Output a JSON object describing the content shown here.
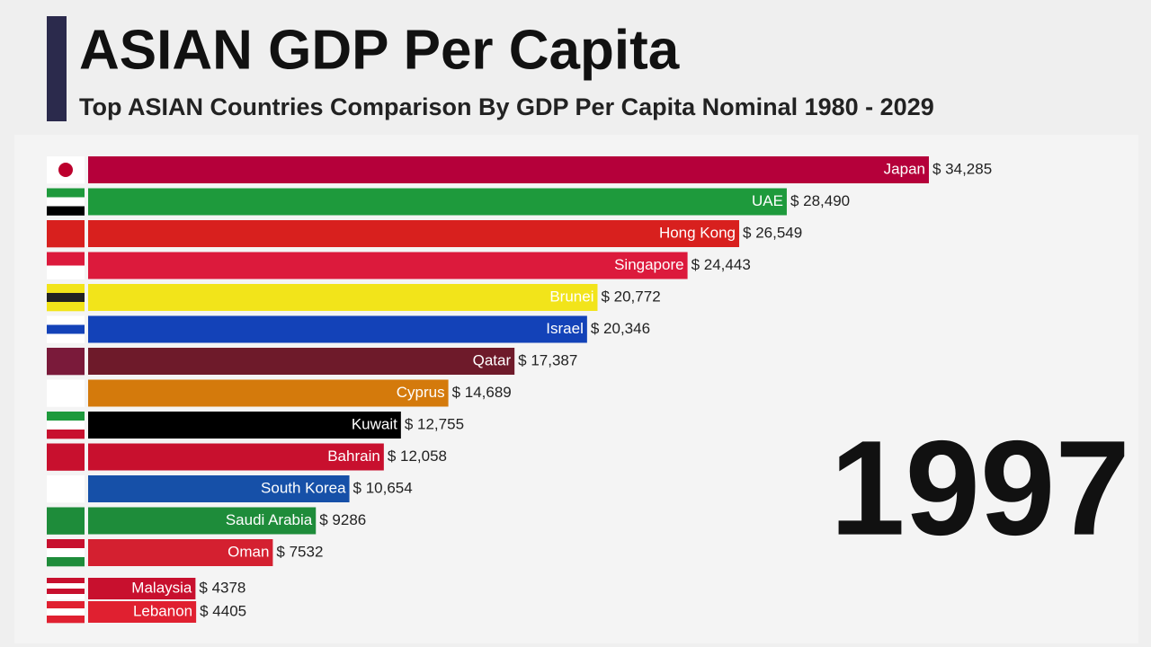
{
  "chart_data": {
    "type": "bar",
    "orientation": "horizontal",
    "title": "ASIAN GDP Per Capita",
    "subtitle": "Top ASIAN Countries Comparison By GDP Per Capita Nominal 1980 - 2029",
    "year": "1997",
    "categories": [
      "Japan",
      "UAE",
      "Hong Kong",
      "Singapore",
      "Brunei",
      "Israel",
      "Qatar",
      "Cyprus",
      "Kuwait",
      "Bahrain",
      "South Korea",
      "Saudi Arabia",
      "Oman",
      "Malaysia",
      "Lebanon"
    ],
    "values": [
      34285,
      28490,
      26549,
      24443,
      20772,
      20346,
      17387,
      14689,
      12755,
      12058,
      10654,
      9286,
      7532,
      4378,
      4405
    ],
    "value_labels": [
      "$ 34,285",
      "$ 28,490",
      "$ 26,549",
      "$ 24,443",
      "$ 20,772",
      "$ 20,346",
      "$ 17,387",
      "$ 14,689",
      "$ 12,755",
      "$ 12,058",
      "$ 10,654",
      "$ 9286",
      "$ 7532",
      "$ 4378",
      "$ 4405"
    ],
    "colors": [
      "#b5003a",
      "#1e9a3c",
      "#d8201e",
      "#dc1a3c",
      "#f2e41a",
      "#1342b8",
      "#6e1a2a",
      "#d47a0c",
      "#000000",
      "#c8102e",
      "#1650a8",
      "#1e8c3a",
      "#d42030",
      "#c8102e",
      "#e02030"
    ]
  }
}
